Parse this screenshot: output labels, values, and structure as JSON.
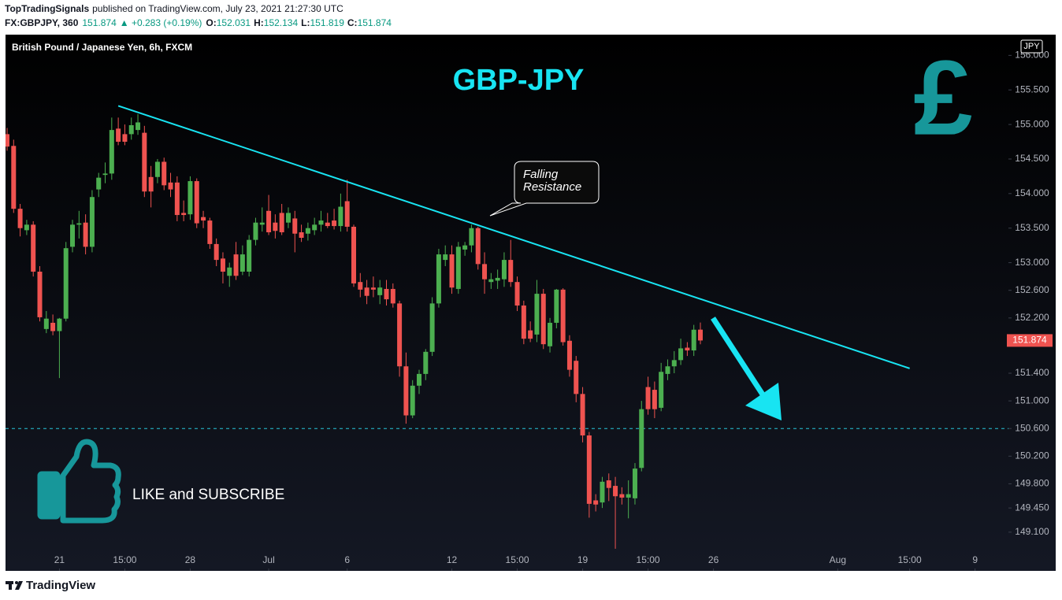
{
  "header": {
    "author": "TopTradingSignals",
    "published": "published on TradingView.com, July 23, 2021 21:27:30 UTC",
    "symbol": "FX:GBPJPY, 360",
    "change": "▲ +0.283 (+0.19%)",
    "o_label": "O:",
    "h_label": "H:",
    "l_label": "L:",
    "c_label": "C:"
  },
  "chart_data": {
    "type": "candlestick",
    "title": "British Pound / Japanese Yen, 6h, FXCM",
    "headline": "GBP-JPY",
    "callout": [
      "Falling",
      "Resistance"
    ],
    "banner": "LIKE and SUBSCRIBE",
    "currency_icon": "£",
    "currency": "JPY",
    "up_color": "#4caf50",
    "down_color": "#ef5350",
    "trend_color": "#18e4f2",
    "open": [
      154.86,
      154.69,
      153.78,
      153.47,
      153.55,
      152.87,
      152.04,
      152.13,
      152.01,
      152.19,
      153.23,
      153.55,
      153.58,
      153.23,
      154.06,
      154.27,
      154.29,
      154.94,
      154.86,
      154.86,
      154.92,
      154.88,
      154.24,
      154.24,
      154.46,
      154.16,
      154.16,
      153.72,
      153.7,
      154.18,
      153.66,
      153.61,
      153.27,
      153.06,
      152.81,
      153.12,
      152.87,
      152.87,
      153.33,
      153.55,
      153.75,
      153.58,
      153.72,
      153.58,
      153.64,
      153.44,
      153.42,
      153.47,
      153.55,
      153.58,
      153.61,
      153.53,
      153.89,
      153.52,
      152.72,
      152.64,
      152.64,
      152.53,
      152.62,
      152.62,
      152.41,
      151.5,
      150.79,
      151.22,
      151.39,
      151.71,
      152.41,
      153.04,
      153.12,
      152.62,
      153.19,
      153.25,
      153.5,
      152.98,
      152.72,
      152.74,
      152.76,
      153.04,
      152.72,
      152.38,
      152.02,
      151.96,
      152.55,
      151.79,
      152.13,
      152.61,
      151.87,
      151.58,
      151.1,
      150.5,
      149.56,
      149.53,
      149.85,
      149.77,
      149.65,
      149.6,
      149.59,
      150.03,
      151.2,
      151.16,
      150.9,
      151.39,
      151.5,
      151.59,
      151.77,
      151.73,
      152.031
    ],
    "high": [
      154.95,
      154.78,
      153.85,
      153.62,
      153.6,
      152.95,
      152.3,
      152.25,
      152.2,
      153.3,
      153.62,
      153.75,
      153.7,
      154.05,
      154.3,
      154.45,
      155.1,
      155.1,
      155.0,
      155.1,
      155.15,
      154.98,
      154.4,
      154.5,
      154.52,
      154.3,
      154.25,
      153.9,
      154.25,
      154.22,
      153.75,
      153.65,
      153.35,
      153.15,
      153.0,
      153.3,
      153.25,
      153.4,
      153.65,
      153.8,
      153.98,
      153.7,
      153.85,
      153.8,
      153.75,
      153.55,
      153.58,
      153.65,
      153.75,
      153.72,
      153.78,
      154.0,
      154.2,
      153.55,
      152.85,
      152.75,
      152.8,
      152.75,
      152.75,
      152.7,
      152.45,
      151.7,
      151.3,
      151.45,
      151.75,
      152.5,
      153.2,
      153.25,
      153.25,
      153.3,
      153.3,
      153.55,
      153.52,
      153.15,
      152.85,
      152.9,
      153.15,
      153.33,
      152.8,
      152.45,
      152.15,
      152.75,
      152.62,
      152.2,
      152.62,
      152.63,
      151.95,
      151.65,
      151.2,
      150.55,
      149.65,
      149.9,
      149.95,
      149.9,
      149.75,
      149.85,
      150.1,
      151.0,
      151.35,
      151.28,
      151.55,
      151.6,
      151.72,
      151.9,
      151.85,
      152.1,
      152.134
    ],
    "low": [
      154.62,
      153.72,
      153.38,
      153.4,
      152.8,
      152.15,
      151.98,
      151.95,
      151.33,
      152.15,
      153.15,
      153.35,
      153.12,
      153.15,
      153.95,
      154.15,
      154.2,
      154.7,
      154.7,
      154.78,
      154.85,
      153.95,
      153.8,
      154.15,
      154.05,
      153.95,
      153.6,
      153.6,
      153.62,
      153.5,
      153.5,
      153.2,
      152.95,
      152.7,
      152.65,
      152.75,
      152.82,
      152.8,
      153.25,
      153.45,
      153.4,
      153.35,
      153.4,
      153.5,
      153.15,
      153.3,
      153.32,
      153.4,
      153.45,
      153.5,
      153.48,
      153.45,
      153.45,
      152.65,
      152.5,
      152.4,
      152.5,
      152.4,
      152.38,
      152.35,
      151.35,
      150.67,
      150.75,
      151.1,
      151.3,
      151.65,
      152.35,
      152.95,
      152.55,
      152.55,
      153.1,
      153.15,
      152.9,
      152.55,
      152.62,
      152.62,
      152.65,
      152.65,
      152.3,
      151.82,
      151.85,
      151.85,
      151.75,
      151.7,
      152.05,
      151.8,
      151.35,
      150.98,
      150.4,
      149.31,
      149.4,
      149.45,
      149.55,
      148.86,
      149.5,
      149.3,
      149.5,
      149.98,
      150.8,
      150.75,
      150.85,
      151.3,
      151.4,
      151.52,
      151.65,
      151.65,
      151.819
    ],
    "close": [
      154.68,
      153.78,
      153.5,
      153.55,
      152.87,
      152.21,
      152.19,
      152.01,
      152.19,
      153.21,
      153.55,
      153.57,
      153.23,
      153.95,
      154.23,
      154.29,
      154.92,
      154.75,
      154.75,
      154.99,
      155.03,
      154.03,
      154.03,
      154.46,
      154.12,
      154.06,
      153.69,
      153.69,
      154.18,
      153.57,
      153.61,
      153.27,
      153.04,
      152.87,
      152.93,
      152.81,
      153.12,
      153.33,
      153.58,
      153.58,
      153.44,
      153.46,
      153.44,
      153.72,
      153.42,
      153.36,
      153.5,
      153.55,
      153.61,
      153.53,
      153.53,
      153.81,
      153.52,
      152.7,
      152.61,
      152.52,
      152.61,
      152.64,
      152.47,
      152.41,
      151.5,
      150.79,
      151.22,
      151.39,
      151.71,
      152.41,
      153.12,
      153.12,
      152.64,
      153.23,
      153.25,
      153.5,
      152.98,
      152.76,
      152.76,
      152.78,
      153.04,
      152.72,
      152.38,
      151.9,
      151.9,
      152.55,
      151.82,
      152.13,
      152.61,
      151.85,
      151.45,
      151.1,
      150.5,
      149.51,
      149.5,
      149.83,
      149.74,
      149.62,
      149.6,
      149.65,
      150.02,
      150.88,
      150.88,
      150.88,
      151.42,
      151.5,
      151.59,
      151.76,
      151.73,
      152.03,
      151.874
    ],
    "horizontal_line": 150.6,
    "trend_line": {
      "x": [
        17,
        138
      ],
      "y": [
        155.27,
        151.47
      ]
    },
    "xlim": [
      -0.24,
      153.1
    ],
    "xticks": [
      {
        "value": 8,
        "label": "21"
      },
      {
        "value": 18,
        "label": "15:00"
      },
      {
        "value": 28,
        "label": "28"
      },
      {
        "value": 40,
        "label": "Jul"
      },
      {
        "value": 52,
        "label": "6"
      },
      {
        "value": 68,
        "label": "12"
      },
      {
        "value": 78,
        "label": "15:00"
      },
      {
        "value": 88,
        "label": "19"
      },
      {
        "value": 98,
        "label": "15:00"
      },
      {
        "value": 108,
        "label": "26"
      },
      {
        "value": 127,
        "label": "Aug"
      },
      {
        "value": 138,
        "label": "15:00"
      },
      {
        "value": 148,
        "label": "9"
      }
    ],
    "ylim": [
      148.54,
      156.3
    ],
    "yticks": [
      {
        "value": 156,
        "label": "156.000"
      },
      {
        "value": 155.5,
        "label": "155.500"
      },
      {
        "value": 155,
        "label": "155.000"
      },
      {
        "value": 154.5,
        "label": "154.500"
      },
      {
        "value": 154,
        "label": "154.000"
      },
      {
        "value": 153.5,
        "label": "153.500"
      },
      {
        "value": 153,
        "label": "153.000"
      },
      {
        "value": 152.6,
        "label": "152.600"
      },
      {
        "value": 152.2,
        "label": "152.200"
      },
      {
        "value": 151.4,
        "label": "151.400"
      },
      {
        "value": 151,
        "label": "151.000"
      },
      {
        "value": 150.6,
        "label": "150.600"
      },
      {
        "value": 150.2,
        "label": "150.200"
      },
      {
        "value": 149.8,
        "label": "149.800"
      },
      {
        "value": 149.45,
        "label": "149.450"
      },
      {
        "value": 149.1,
        "label": "149.100"
      }
    ],
    "grid": false
  },
  "footer": {
    "brand": "TradingView"
  }
}
